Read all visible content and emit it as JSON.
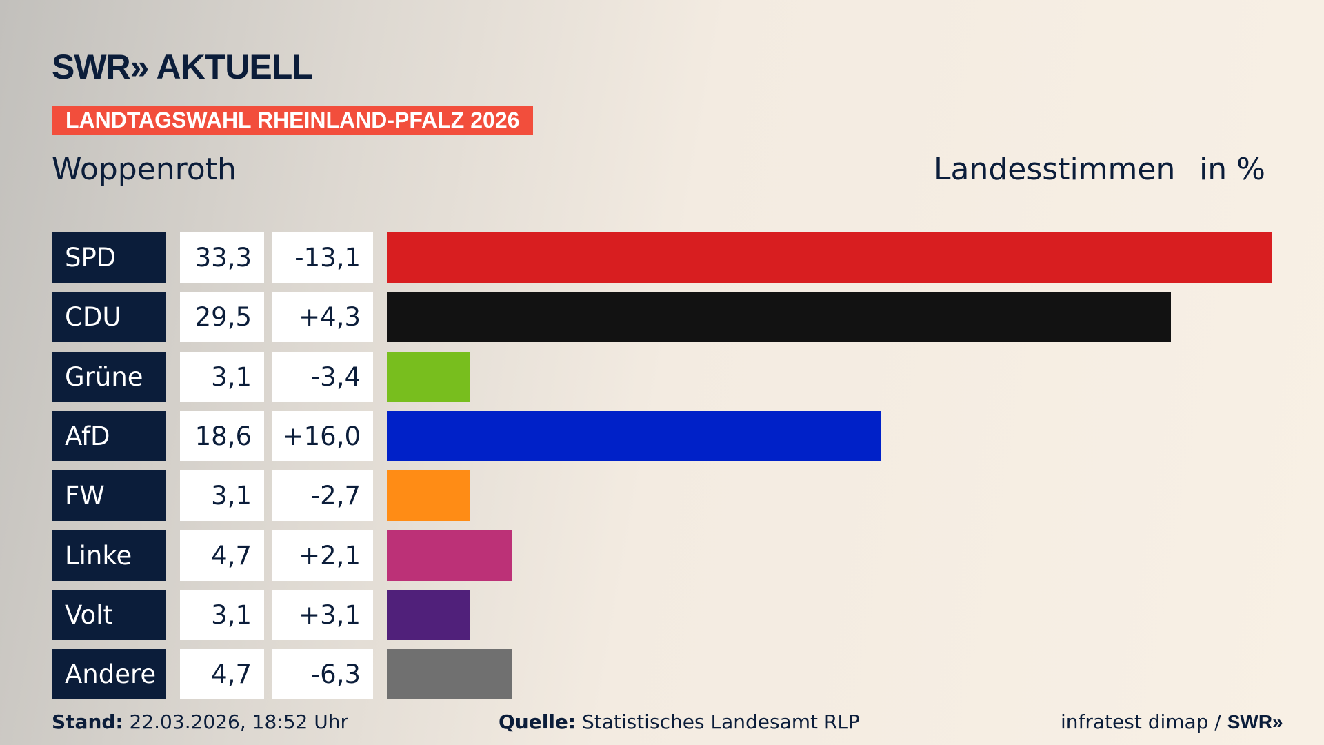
{
  "header": {
    "logo": "SWR» AKTUELL",
    "banner": "LANDTAGSWAHL RHEINLAND-PFALZ 2026",
    "place": "Woppenroth",
    "measure": "Landesstimmen",
    "unit": "in %"
  },
  "chart_data": {
    "type": "bar",
    "orientation": "horizontal",
    "xlim": [
      0,
      33.3
    ],
    "categories": [
      "SPD",
      "CDU",
      "Grüne",
      "AfD",
      "FW",
      "Linke",
      "Volt",
      "Andere"
    ],
    "values": [
      33.3,
      29.5,
      3.1,
      18.6,
      3.1,
      4.7,
      3.1,
      4.7
    ],
    "value_labels": [
      "33,3",
      "29,5",
      "3,1",
      "18,6",
      "3,1",
      "4,7",
      "3,1",
      "4,7"
    ],
    "diff_labels": [
      "-13,1",
      "+4,3",
      "-3,4",
      "+16,0",
      "-2,7",
      "+2,1",
      "+3,1",
      "-6,3"
    ],
    "colors": [
      "#d81e20",
      "#121212",
      "#78be1e",
      "#0021c8",
      "#ff8c15",
      "#bc3177",
      "#50207a",
      "#707070"
    ]
  },
  "footer": {
    "stand_label": "Stand:",
    "stand": "22.03.2026, 18:52 Uhr",
    "source_label": "Quelle:",
    "source": "Statistisches Landesamt RLP",
    "credit": "infratest dimap / ",
    "credit_logo": "SWR»"
  }
}
